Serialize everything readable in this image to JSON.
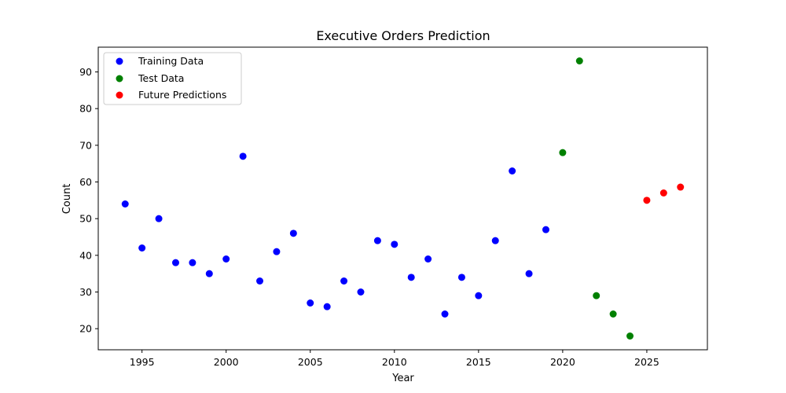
{
  "chart_data": {
    "type": "scatter",
    "title": "Executive Orders Prediction",
    "xlabel": "Year",
    "ylabel": "Count",
    "xlim": [
      1992.4,
      2028.6
    ],
    "ylim": [
      14.25,
      96.75
    ],
    "xticks": [
      1995,
      2000,
      2005,
      2010,
      2015,
      2020,
      2025
    ],
    "yticks": [
      20,
      30,
      40,
      50,
      60,
      70,
      80,
      90
    ],
    "grid": false,
    "legend_position": "top-left",
    "series": [
      {
        "name": "Training Data",
        "color": "#0000ff",
        "x": [
          1994,
          1995,
          1996,
          1997,
          1998,
          1999,
          2000,
          2001,
          2002,
          2003,
          2004,
          2005,
          2006,
          2007,
          2008,
          2009,
          2010,
          2011,
          2012,
          2013,
          2014,
          2015,
          2016,
          2017,
          2018,
          2019
        ],
        "y": [
          54,
          42,
          50,
          38,
          38,
          35,
          39,
          67,
          33,
          41,
          46,
          27,
          26,
          33,
          30,
          44,
          43,
          34,
          39,
          24,
          34,
          29,
          44,
          63,
          35,
          47
        ]
      },
      {
        "name": "Test Data",
        "color": "#008000",
        "x": [
          2020,
          2021,
          2022,
          2023,
          2024
        ],
        "y": [
          68,
          93,
          29,
          24,
          18
        ]
      },
      {
        "name": "Future Predictions",
        "color": "#ff0000",
        "x": [
          2025,
          2026,
          2027
        ],
        "y": [
          55,
          57,
          58.6
        ]
      }
    ]
  }
}
